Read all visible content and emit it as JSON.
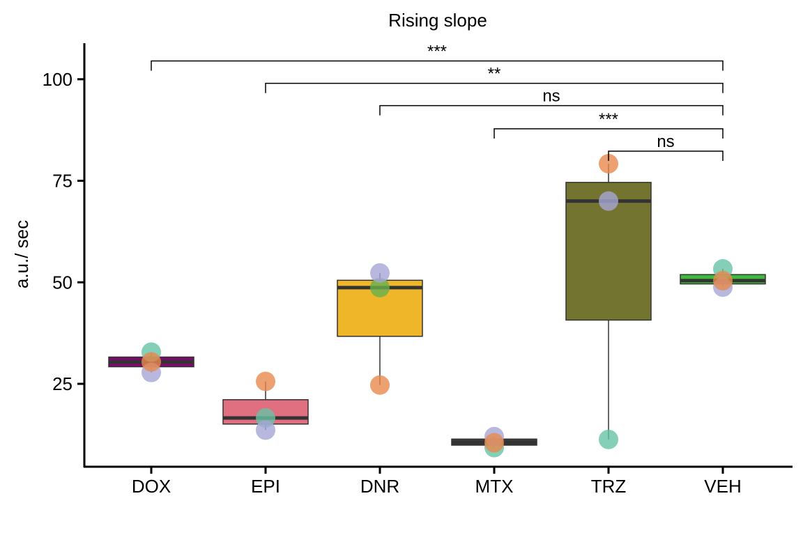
{
  "chart_data": {
    "type": "box",
    "title": "Rising slope",
    "xlabel": "",
    "ylabel": "a.u./ sec",
    "ylim": [
      6,
      109
    ],
    "yticks": [
      25,
      50,
      75,
      100
    ],
    "grid": false,
    "legend": "none",
    "categories": [
      "DOX",
      "EPI",
      "DNR",
      "MTX",
      "TRZ",
      "VEH"
    ],
    "boxes": [
      {
        "group": "DOX",
        "min": 27.8,
        "q1": 29.2,
        "median": 30.4,
        "q3": 31.6,
        "max": 32.8,
        "fill": "#7b0a6b"
      },
      {
        "group": "EPI",
        "min": 13.6,
        "q1": 15.1,
        "median": 16.6,
        "q3": 21.1,
        "max": 25.6,
        "fill": "#e07080"
      },
      {
        "group": "DNR",
        "min": 24.7,
        "q1": 36.7,
        "median": 48.7,
        "q3": 50.5,
        "max": 52.3,
        "fill": "#f0b62a"
      },
      {
        "group": "MTX",
        "min": 9.3,
        "q1": 9.9,
        "median": 10.5,
        "q3": 11.4,
        "max": 12.0,
        "fill": "#3a3a3a"
      },
      {
        "group": "TRZ",
        "min": 11.3,
        "q1": 40.7,
        "median": 70.0,
        "q3": 74.6,
        "max": 79.2,
        "fill": "#737430"
      },
      {
        "group": "VEH",
        "min": 48.8,
        "q1": 49.6,
        "median": 50.4,
        "q3": 51.9,
        "max": 53.3,
        "fill": "#3fb93c"
      }
    ],
    "points": [
      {
        "group": "DOX",
        "value": 32.8,
        "color": "#66c2a5"
      },
      {
        "group": "DOX",
        "value": 27.8,
        "color": "#a6a6d6"
      },
      {
        "group": "DOX",
        "value": 30.4,
        "color": "#e8894c"
      },
      {
        "group": "EPI",
        "value": 16.6,
        "color": "#66c2a5"
      },
      {
        "group": "EPI",
        "value": 13.6,
        "color": "#a6a6d6"
      },
      {
        "group": "EPI",
        "value": 25.6,
        "color": "#e8894c"
      },
      {
        "group": "DNR",
        "value": 48.7,
        "color": "#66b04c"
      },
      {
        "group": "DNR",
        "value": 52.3,
        "color": "#a6a6d6"
      },
      {
        "group": "DNR",
        "value": 24.7,
        "color": "#e8894c"
      },
      {
        "group": "MTX",
        "value": 9.3,
        "color": "#66c2a5"
      },
      {
        "group": "MTX",
        "value": 12.0,
        "color": "#a6a6d6"
      },
      {
        "group": "MTX",
        "value": 10.5,
        "color": "#e8894c"
      },
      {
        "group": "TRZ",
        "value": 11.3,
        "color": "#66c2a5"
      },
      {
        "group": "TRZ",
        "value": 70.0,
        "color": "#a6a6d6"
      },
      {
        "group": "TRZ",
        "value": 79.2,
        "color": "#e8894c"
      },
      {
        "group": "VEH",
        "value": 53.3,
        "color": "#66c2a5"
      },
      {
        "group": "VEH",
        "value": 48.8,
        "color": "#a6a6d6"
      },
      {
        "group": "VEH",
        "value": 50.4,
        "color": "#e8894c"
      }
    ],
    "comparisons": [
      {
        "from": "DOX",
        "to": "VEH",
        "label": "***",
        "y": 104.5
      },
      {
        "from": "EPI",
        "to": "VEH",
        "label": "**",
        "y": 99
      },
      {
        "from": "DNR",
        "to": "VEH",
        "label": "ns",
        "y": 93.5
      },
      {
        "from": "MTX",
        "to": "VEH",
        "label": "***",
        "y": 87.8
      },
      {
        "from": "TRZ",
        "to": "VEH",
        "label": "ns",
        "y": 82.3
      }
    ]
  }
}
